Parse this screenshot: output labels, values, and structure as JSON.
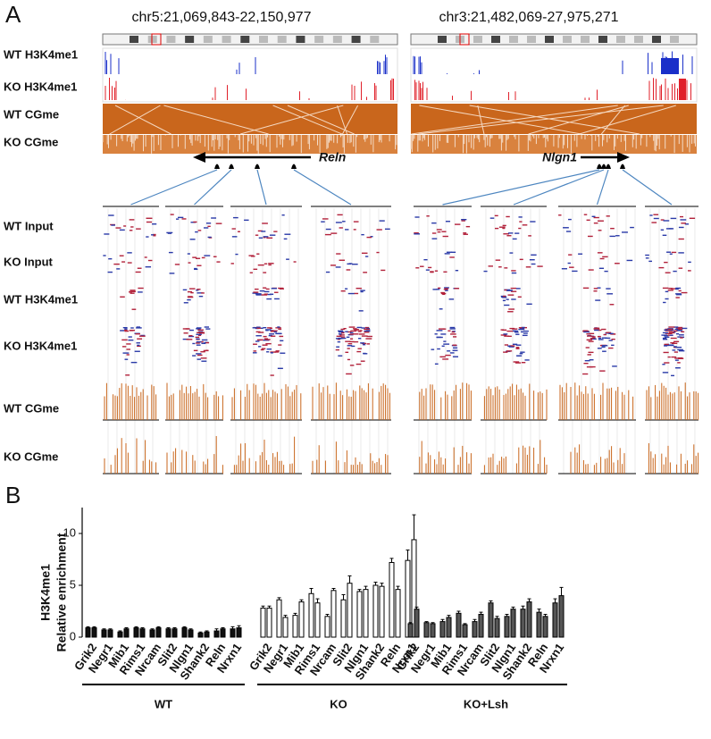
{
  "panel_a": {
    "label": "A",
    "regions": [
      {
        "coords": "chr5:21,069,843-22,150,977",
        "gene": "Reln"
      },
      {
        "coords": "chr3:21,482,069-27,975,271",
        "gene": "Nlgn1"
      }
    ],
    "browser_tracks": [
      "WT  H3K4me1",
      "KO  H3K4me1",
      "WT  CGme",
      "KO  CGme"
    ],
    "detail_tracks": [
      "WT  Input",
      "KO  Input",
      "WT  H3K4me1",
      "KO  H3K4me1",
      "WT  CGme",
      "KO  CGme"
    ]
  },
  "panel_b": {
    "label": "B"
  },
  "chart_data": {
    "type": "bar",
    "y_label": [
      "H3K4me1",
      "Relative enrichment"
    ],
    "categories": [
      "Grik2",
      "Negr1",
      "Mib1",
      "Rims1",
      "Nrcam",
      "Slit2",
      "Nlgn1",
      "Shank2",
      "Reln",
      "Nrxn1"
    ],
    "ylim": [
      0,
      12.5
    ],
    "yticks": [
      0,
      5,
      10
    ],
    "groups": [
      {
        "name": "WT",
        "color": "#111111",
        "values": [
          [
            0.9,
            0.9
          ],
          [
            0.7,
            0.7
          ],
          [
            0.5,
            0.8
          ],
          [
            0.9,
            0.8
          ],
          [
            0.7,
            0.9
          ],
          [
            0.8,
            0.8
          ],
          [
            0.9,
            0.7
          ],
          [
            0.4,
            0.5
          ],
          [
            0.6,
            0.8
          ],
          [
            0.8,
            0.9
          ]
        ],
        "errors": [
          [
            0.1,
            0.1
          ],
          [
            0.1,
            0.1
          ],
          [
            0.1,
            0.1
          ],
          [
            0.1,
            0.1
          ],
          [
            0.1,
            0.1
          ],
          [
            0.1,
            0.1
          ],
          [
            0.1,
            0.1
          ],
          [
            0.1,
            0.1
          ],
          [
            0.2,
            0.1
          ],
          [
            0.2,
            0.2
          ]
        ]
      },
      {
        "name": "KO",
        "color": "#ffffff",
        "values": [
          [
            2.8,
            2.8
          ],
          [
            3.6,
            1.9
          ],
          [
            2.1,
            3.4
          ],
          [
            4.2,
            3.3
          ],
          [
            2.0,
            4.5
          ],
          [
            3.6,
            5.2
          ],
          [
            4.4,
            4.6
          ],
          [
            5.0,
            4.9
          ],
          [
            7.2,
            4.6
          ],
          [
            7.4,
            9.4
          ]
        ],
        "errors": [
          [
            0.2,
            0.2
          ],
          [
            0.2,
            0.2
          ],
          [
            0.2,
            0.2
          ],
          [
            0.5,
            0.4
          ],
          [
            0.2,
            0.2
          ],
          [
            0.5,
            0.7
          ],
          [
            0.2,
            0.3
          ],
          [
            0.3,
            0.3
          ],
          [
            0.4,
            0.3
          ],
          [
            1.0,
            2.4
          ]
        ]
      },
      {
        "name": "KO+Lsh",
        "color": "#555555",
        "values": [
          [
            1.3,
            2.7
          ],
          [
            1.4,
            1.3
          ],
          [
            1.5,
            1.9
          ],
          [
            2.3,
            1.2
          ],
          [
            1.5,
            2.2
          ],
          [
            3.3,
            1.8
          ],
          [
            2.0,
            2.7
          ],
          [
            2.7,
            3.4
          ],
          [
            2.4,
            2.0
          ],
          [
            3.3,
            4.0
          ]
        ],
        "errors": [
          [
            0.1,
            0.2
          ],
          [
            0.1,
            0.1
          ],
          [
            0.2,
            0.2
          ],
          [
            0.2,
            0.1
          ],
          [
            0.2,
            0.2
          ],
          [
            0.2,
            0.2
          ],
          [
            0.2,
            0.2
          ],
          [
            0.3,
            0.3
          ],
          [
            0.3,
            0.2
          ],
          [
            0.4,
            0.8
          ]
        ]
      }
    ]
  }
}
